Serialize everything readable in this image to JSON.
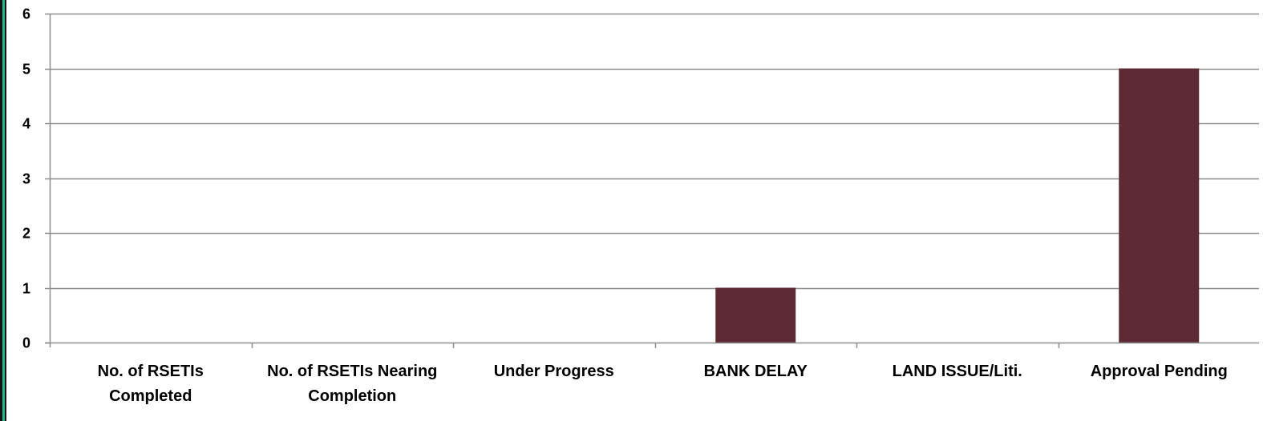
{
  "chart_data": {
    "type": "bar",
    "categories": [
      [
        "No. of RSETIs",
        "Completed"
      ],
      [
        "No. of RSETIs Nearing",
        "Completion"
      ],
      [
        "Under Progress"
      ],
      [
        "BANK DELAY"
      ],
      [
        "LAND ISSUE/Liti."
      ],
      [
        "Approval Pending"
      ]
    ],
    "values": [
      0,
      0,
      0,
      1,
      0,
      5
    ],
    "ylim": [
      0,
      6
    ],
    "yticks": [
      "0",
      "1",
      "2",
      "3",
      "4",
      "5",
      "6"
    ],
    "grid": true,
    "legend": "none",
    "bar_color": "#5e2a35",
    "grid_color": "#8c8c8c",
    "frame_colors": {
      "dark": "#111111",
      "accent": "#1fb88a"
    }
  }
}
